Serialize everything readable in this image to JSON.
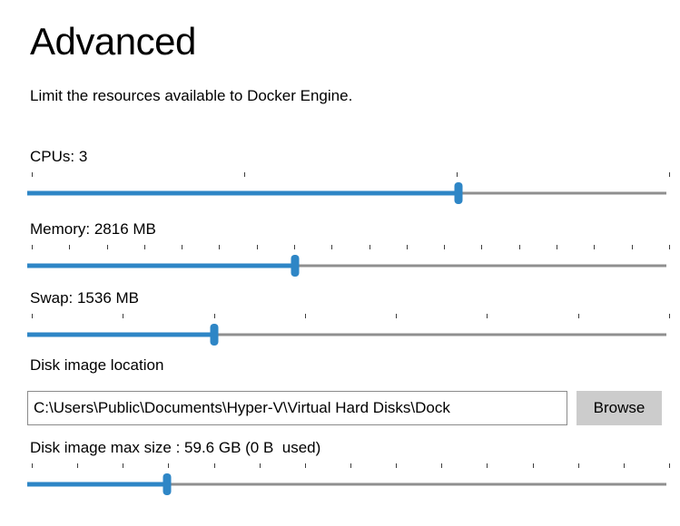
{
  "page": {
    "title": "Advanced",
    "subtitle": "Limit the resources available to Docker Engine."
  },
  "colors": {
    "accent": "#2e86c6",
    "track": "#8f8f8f",
    "tick": "#3f3f3f",
    "button_bg": "#cccccc"
  },
  "sliders": [
    {
      "id": "cpus",
      "label": "CPUs: 3",
      "fraction": 0.675,
      "tick_count": 4
    },
    {
      "id": "memory",
      "label": "Memory: 2816 MB",
      "fraction": 0.419,
      "tick_count": 18
    },
    {
      "id": "swap",
      "label": "Swap: 1536 MB",
      "fraction": 0.293,
      "tick_count": 8
    },
    {
      "id": "disk_size",
      "label": "Disk image max size : 59.6 GB (0 B  used)",
      "fraction": 0.219,
      "tick_count": 15
    }
  ],
  "disk_location": {
    "label": "Disk image location",
    "value": "C:\\Users\\Public\\Documents\\Hyper-V\\Virtual Hard Disks\\Dock"
  },
  "buttons": {
    "browse": "Browse"
  }
}
